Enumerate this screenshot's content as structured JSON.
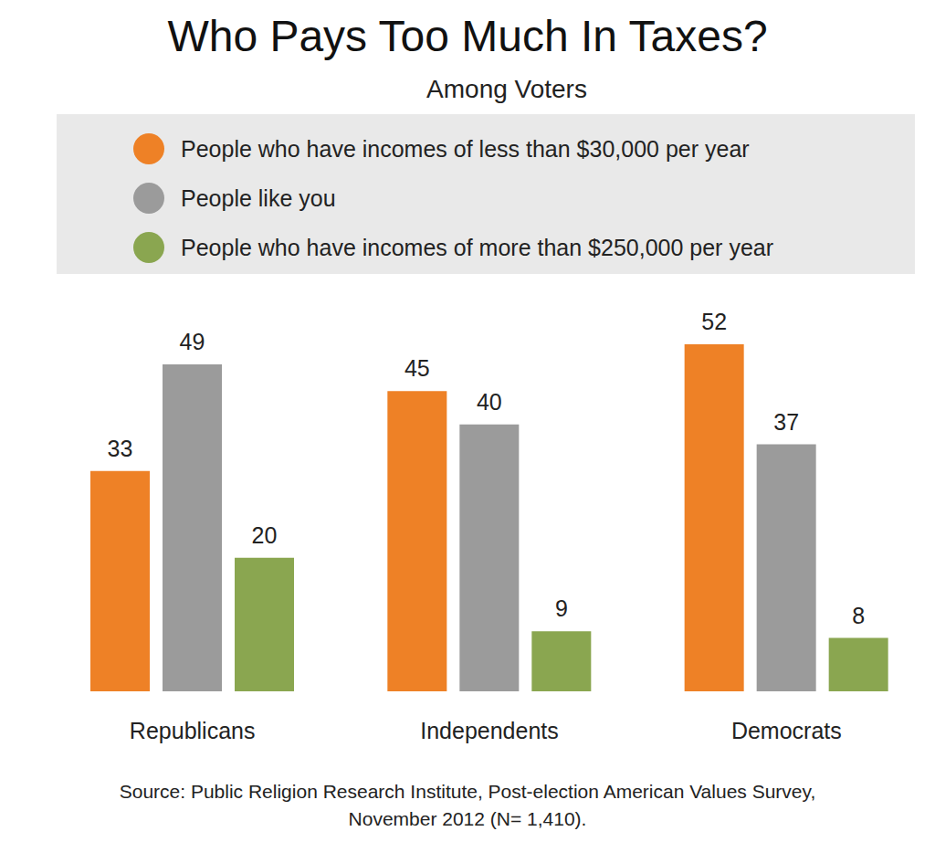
{
  "chart_data": {
    "type": "bar",
    "title": "Who Pays Too Much In Taxes?",
    "subtitle": "Among Voters",
    "categories": [
      "Republicans",
      "Independents",
      "Democrats"
    ],
    "series": [
      {
        "name": "People who have incomes of less than $30,000 per year",
        "color": "#ee8126",
        "values": [
          33,
          45,
          52
        ]
      },
      {
        "name": "People like you",
        "color": "#9b9b9b",
        "values": [
          49,
          40,
          37
        ]
      },
      {
        "name": "People who have incomes of more than $250,000 per year",
        "color": "#8aa650",
        "values": [
          20,
          9,
          8
        ]
      }
    ],
    "legend": "top",
    "data_labels": true,
    "tick_labels": "x",
    "source": "Source: Public Religion Research Institute, Post-election American Values Survey, November 2012 (N= 1,410)."
  }
}
